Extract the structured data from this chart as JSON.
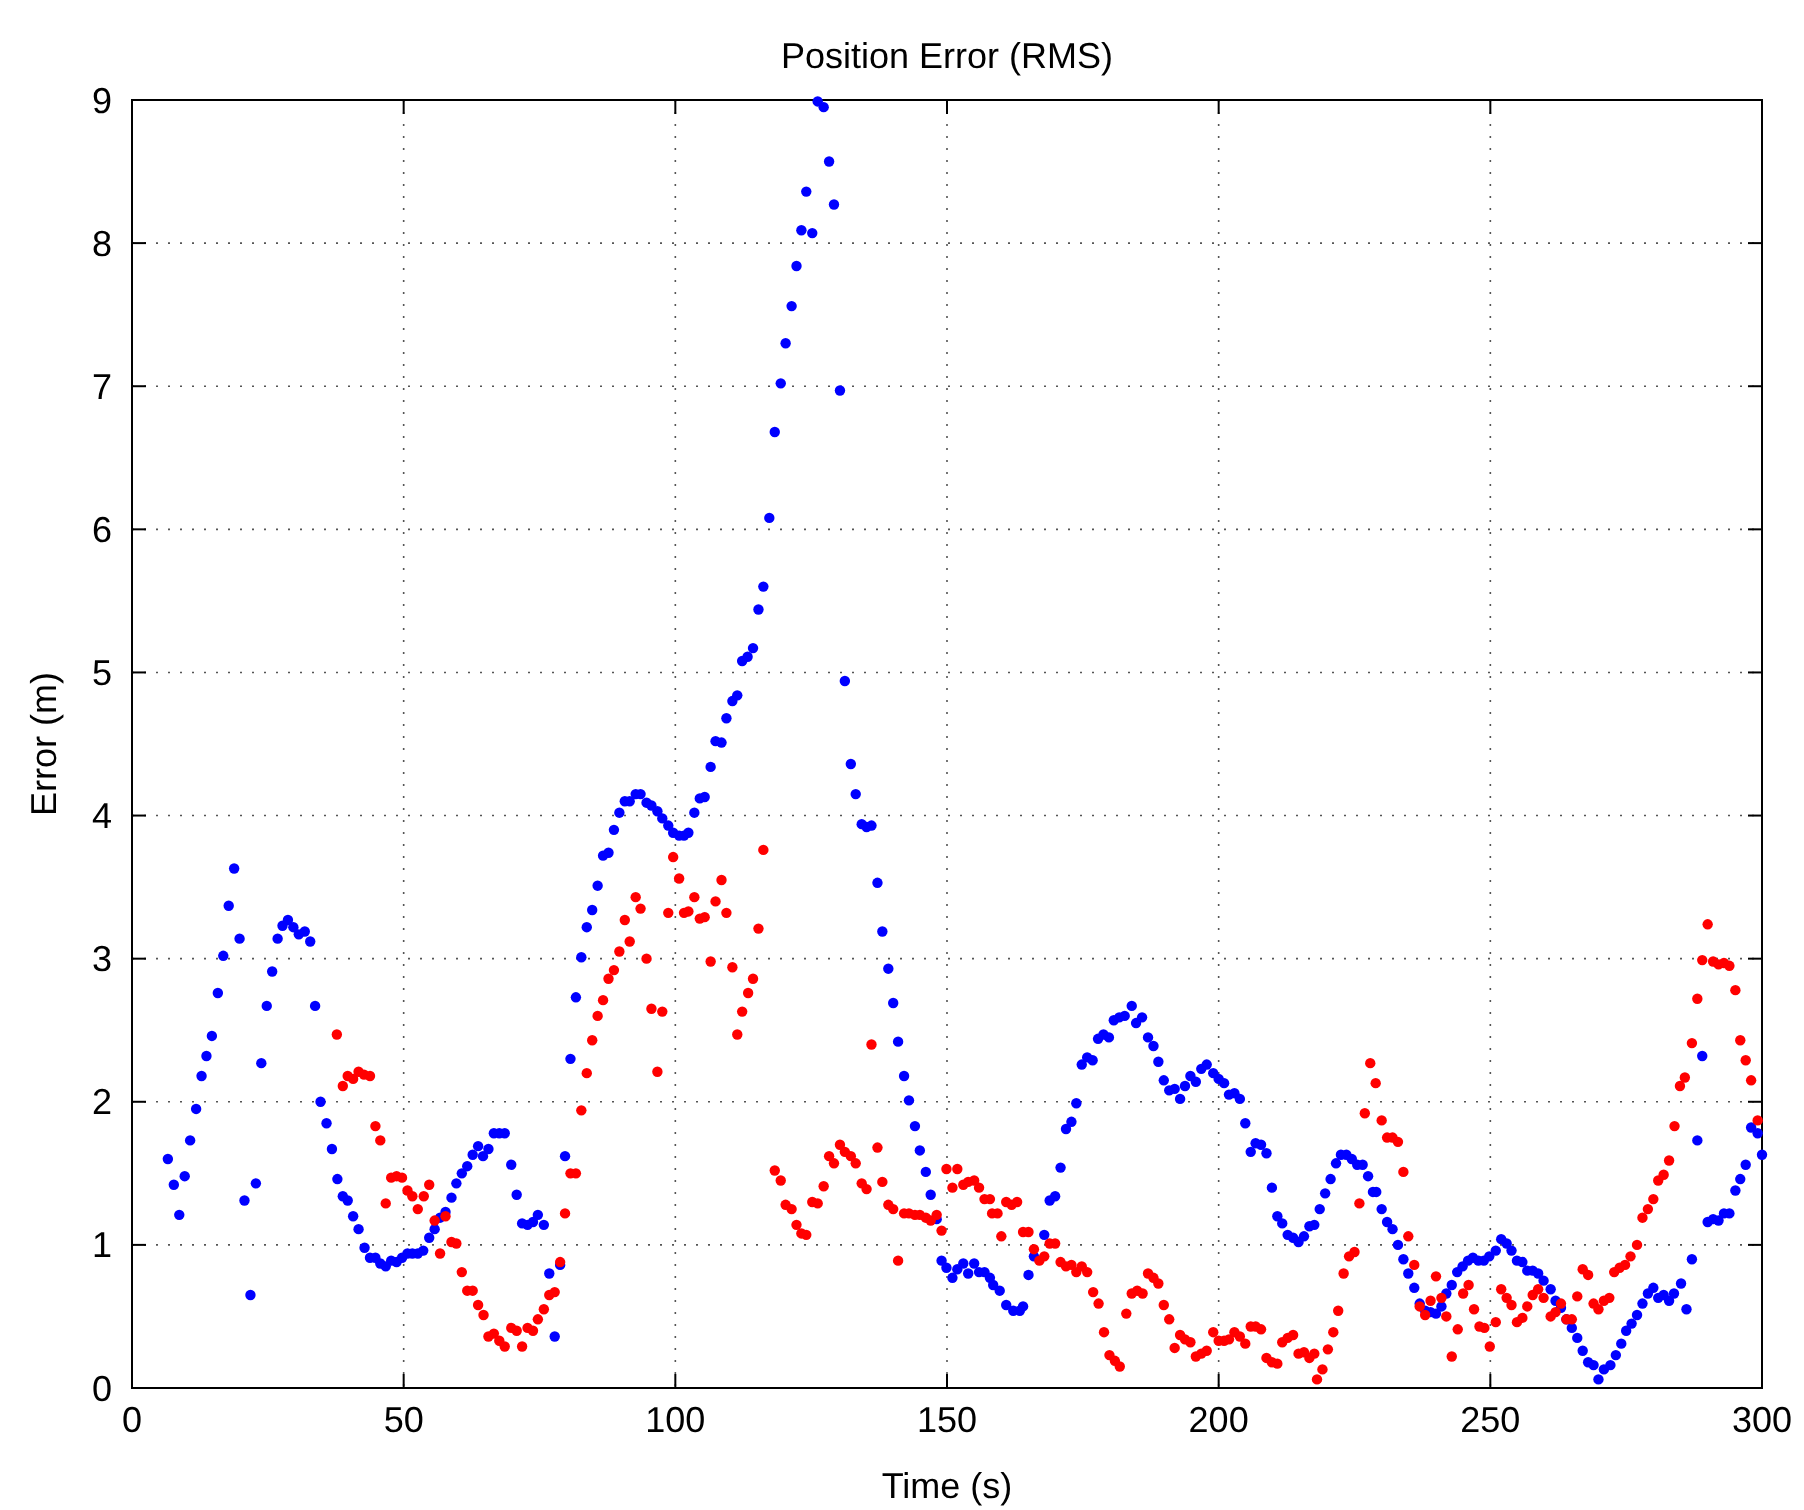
{
  "chart_data": {
    "type": "scatter",
    "title": "Position Error (RMS)",
    "xlabel": "Time (s)",
    "ylabel": "Error (m)",
    "xlim": [
      0,
      300
    ],
    "ylim": [
      0,
      9
    ],
    "xticks": [
      0,
      50,
      100,
      150,
      200,
      250,
      300
    ],
    "yticks": [
      0,
      1,
      2,
      3,
      4,
      5,
      6,
      7,
      8,
      9
    ],
    "grid": true,
    "marker": "circle",
    "series": [
      {
        "color": "#0000ff",
        "x": [
          6.6,
          7.7,
          8.7,
          9.7,
          10.7,
          11.8,
          12.8,
          13.7,
          14.7,
          15.8,
          16.8,
          17.8,
          18.8,
          19.8,
          20.7,
          21.8,
          22.8,
          23.8,
          24.8,
          25.8,
          26.8,
          27.7,
          28.7,
          29.7,
          30.7,
          31.8,
          32.8,
          33.7,
          34.7,
          35.8,
          36.8,
          37.8,
          38.8,
          39.7,
          40.7,
          41.7,
          42.8,
          43.8,
          44.8,
          45.7,
          46.7,
          47.7,
          48.7,
          49.7,
          50.7,
          51.6,
          52.6,
          53.6,
          54.7,
          55.7,
          56.7,
          57.7,
          58.8,
          59.7,
          60.7,
          61.7,
          62.7,
          63.7,
          64.6,
          65.6,
          66.6,
          67.6,
          68.6,
          69.8,
          70.8,
          71.8,
          72.8,
          73.8,
          74.7,
          75.8,
          76.8,
          77.8,
          78.8,
          79.7,
          80.7,
          81.7,
          82.7,
          83.7,
          84.7,
          85.7,
          86.7,
          87.7,
          88.7,
          89.7,
          90.7,
          91.6,
          92.7,
          93.6,
          94.7,
          95.6,
          96.7,
          97.6,
          98.7,
          99.6,
          100.7,
          101.6,
          102.4,
          103.5,
          104.5,
          105.4,
          106.5,
          107.4,
          108.5,
          109.4,
          110.5,
          111.4,
          112.3,
          113.3,
          114.3,
          115.3,
          116.2,
          117.3,
          118.3,
          119.4,
          120.3,
          121.4,
          122.3,
          123.2,
          124.1,
          125.2,
          126.2,
          127.3,
          128.3,
          129.2,
          130.3,
          131.2,
          132.3,
          133.2,
          134.3,
          135.2,
          136.1,
          137.2,
          138.1,
          139.2,
          140.1,
          141.0,
          142.1,
          143.0,
          144.1,
          145.0,
          146.1,
          147.0,
          148.1,
          149.0,
          149.9,
          151.0,
          151.9,
          153.0,
          153.9,
          155.0,
          155.9,
          156.9,
          157.9,
          158.5,
          159.7,
          160.9,
          162.2,
          163.4,
          164.0,
          165.0,
          166.0,
          167.9,
          168.9,
          169.9,
          170.9,
          171.9,
          172.9,
          173.8,
          174.8,
          175.8,
          176.8,
          177.8,
          178.8,
          179.8,
          180.7,
          181.7,
          182.7,
          184.0,
          184.8,
          185.9,
          187.0,
          188.0,
          188.9,
          189.9,
          190.9,
          191.9,
          192.9,
          193.8,
          194.8,
          195.8,
          196.8,
          197.8,
          199.0,
          200.0,
          201.0,
          201.9,
          202.9,
          203.9,
          204.9,
          205.9,
          206.8,
          207.8,
          208.8,
          209.8,
          210.8,
          211.7,
          212.7,
          213.7,
          214.7,
          215.7,
          216.7,
          217.6,
          218.6,
          219.6,
          220.6,
          221.6,
          222.5,
          223.5,
          224.5,
          225.5,
          226.5,
          227.5,
          228.4,
          229.0,
          230.0,
          231.0,
          232.0,
          233.0,
          234.0,
          234.9,
          236.0,
          237.0,
          238.0,
          239.0,
          240.0,
          241.0,
          241.9,
          242.9,
          243.9,
          244.9,
          245.9,
          246.8,
          247.8,
          248.8,
          249.8,
          251.0,
          252.0,
          253.0,
          253.9,
          254.9,
          255.9,
          256.8,
          257.8,
          258.8,
          259.8,
          261.1,
          262.0,
          263.0,
          264.0,
          265.0,
          266.0,
          267.0,
          268.0,
          269.0,
          269.9,
          270.9,
          272.1,
          273.1,
          274.1,
          275.0,
          276.0,
          277.0,
          278.0,
          279.0,
          280.0,
          280.9,
          281.9,
          282.9,
          283.8,
          285.1,
          286.1,
          287.1,
          288.1,
          289.0,
          290.0,
          291.0,
          292.0,
          293.0,
          294.0,
          295.1,
          296.0,
          297.0,
          298.0,
          299.2,
          300
        ],
        "values": [
          1.6,
          1.42,
          1.21,
          1.48,
          1.73,
          1.95,
          2.18,
          2.32,
          2.46,
          2.76,
          3.02,
          3.37,
          3.63,
          3.14,
          1.31,
          0.65,
          1.43,
          2.27,
          2.67,
          2.91,
          3.14,
          3.23,
          3.27,
          3.22,
          3.17,
          3.19,
          3.12,
          2.67,
          2.0,
          1.85,
          1.67,
          1.46,
          1.34,
          1.31,
          1.2,
          1.11,
          0.98,
          0.91,
          0.91,
          0.87,
          0.85,
          0.89,
          0.88,
          0.91,
          0.94,
          0.94,
          0.94,
          0.96,
          1.05,
          1.11,
          1.19,
          1.23,
          1.33,
          1.43,
          1.5,
          1.55,
          1.63,
          1.69,
          1.62,
          1.67,
          1.78,
          1.78,
          1.78,
          1.56,
          1.35,
          1.15,
          1.14,
          1.16,
          1.21,
          1.14,
          0.8,
          0.36,
          0.86,
          1.62,
          2.3,
          2.73,
          3.01,
          3.22,
          3.34,
          3.51,
          3.72,
          3.74,
          3.9,
          4.02,
          4.1,
          4.1,
          4.15,
          4.15,
          4.09,
          4.07,
          4.03,
          3.98,
          3.93,
          3.88,
          3.86,
          3.86,
          3.88,
          4.02,
          4.12,
          4.13,
          4.34,
          4.52,
          4.51,
          4.68,
          4.8,
          4.84,
          5.08,
          5.11,
          5.17,
          5.44,
          5.6,
          6.08,
          6.68,
          7.02,
          7.3,
          7.56,
          7.84,
          8.09,
          8.36,
          8.07,
          8.99,
          8.95,
          8.57,
          8.27,
          6.97,
          4.94,
          4.36,
          4.15,
          3.94,
          3.92,
          3.93,
          3.53,
          3.19,
          2.93,
          2.69,
          2.42,
          2.18,
          2.01,
          1.83,
          1.66,
          1.51,
          1.35,
          1.18,
          0.89,
          0.84,
          0.77,
          0.83,
          0.87,
          0.8,
          0.87,
          0.81,
          0.81,
          0.77,
          0.72,
          0.68,
          0.58,
          0.54,
          0.54,
          0.57,
          0.79,
          0.92,
          1.07,
          1.31,
          1.34,
          1.54,
          1.81,
          1.86,
          1.99,
          2.26,
          2.31,
          2.29,
          2.44,
          2.47,
          2.45,
          2.57,
          2.59,
          2.6,
          2.67,
          2.55,
          2.59,
          2.45,
          2.39,
          2.28,
          2.15,
          2.08,
          2.09,
          2.02,
          2.11,
          2.18,
          2.14,
          2.23,
          2.26,
          2.2,
          2.16,
          2.13,
          2.05,
          2.06,
          2.02,
          1.85,
          1.65,
          1.71,
          1.7,
          1.64,
          1.4,
          1.2,
          1.15,
          1.07,
          1.05,
          1.02,
          1.06,
          1.13,
          1.14,
          1.25,
          1.36,
          1.46,
          1.57,
          1.63,
          1.63,
          1.6,
          1.56,
          1.56,
          1.48,
          1.37,
          1.37,
          1.25,
          1.16,
          1.11,
          1.0,
          0.9,
          0.8,
          0.7,
          0.59,
          0.54,
          0.53,
          0.52,
          0.57,
          0.66,
          0.72,
          0.81,
          0.85,
          0.89,
          0.91,
          0.89,
          0.89,
          0.92,
          0.96,
          1.04,
          1.01,
          0.96,
          0.89,
          0.88,
          0.82,
          0.82,
          0.8,
          0.75,
          0.69,
          0.61,
          0.56,
          0.48,
          0.42,
          0.35,
          0.26,
          0.18,
          0.16,
          0.06,
          0.13,
          0.16,
          0.23,
          0.31,
          0.4,
          0.45,
          0.51,
          0.59,
          0.66,
          0.7,
          0.63,
          0.65,
          0.61,
          0.66,
          0.73,
          0.55,
          0.9,
          1.73,
          2.32,
          1.16,
          1.18,
          1.17,
          1.22,
          1.22,
          1.38,
          1.46,
          1.56,
          1.82,
          1.78,
          1.63
        ]
      },
      {
        "color": "#ff0000",
        "x": [
          37.7,
          38.8,
          39.7,
          40.7,
          41.7,
          42.7,
          43.8,
          44.8,
          45.7,
          46.7,
          47.7,
          48.7,
          49.7,
          50.7,
          51.6,
          52.6,
          53.7,
          54.7,
          55.7,
          56.7,
          57.7,
          58.8,
          59.7,
          60.7,
          61.7,
          62.7,
          63.7,
          64.7,
          65.6,
          66.6,
          67.6,
          68.6,
          69.8,
          70.8,
          71.8,
          72.8,
          73.8,
          74.7,
          75.8,
          76.8,
          77.8,
          78.8,
          79.7,
          80.7,
          81.7,
          82.7,
          83.7,
          84.7,
          85.7,
          86.7,
          87.7,
          88.7,
          89.7,
          90.7,
          91.6,
          92.7,
          93.6,
          94.7,
          95.6,
          96.7,
          97.6,
          98.7,
          99.6,
          100.7,
          101.6,
          102.4,
          103.5,
          104.5,
          105.4,
          106.5,
          107.4,
          108.5,
          109.4,
          110.5,
          111.4,
          112.3,
          113.4,
          114.3,
          115.3,
          116.2,
          118.3,
          119.4,
          120.3,
          121.4,
          122.3,
          123.2,
          124.1,
          125.2,
          126.2,
          127.3,
          128.3,
          129.2,
          130.3,
          131.2,
          132.3,
          133.2,
          134.3,
          135.2,
          136.1,
          137.2,
          138.1,
          139.2,
          140.1,
          141.0,
          142.1,
          143.0,
          144.1,
          145.0,
          146.1,
          147.0,
          148.1,
          149.0,
          149.9,
          151.0,
          151.9,
          153.0,
          153.9,
          155.0,
          155.9,
          156.9,
          157.9,
          158.3,
          159.3,
          160.0,
          160.9,
          161.9,
          162.9,
          164.0,
          165.0,
          166.0,
          167.0,
          167.9,
          168.9,
          169.9,
          170.9,
          171.9,
          172.9,
          173.8,
          174.8,
          175.8,
          176.9,
          177.9,
          178.9,
          179.9,
          180.9,
          181.8,
          183.0,
          184.0,
          185.0,
          186.0,
          187.0,
          188.0,
          188.9,
          189.9,
          190.9,
          191.9,
          192.9,
          193.8,
          194.8,
          195.8,
          196.8,
          197.8,
          199.0,
          200.0,
          201.0,
          201.9,
          202.9,
          203.9,
          204.9,
          205.9,
          206.8,
          207.8,
          208.8,
          209.8,
          210.8,
          211.7,
          212.7,
          213.7,
          214.7,
          215.7,
          216.7,
          217.6,
          218.1,
          219.1,
          220.1,
          221.1,
          222.0,
          223.0,
          224.0,
          225.0,
          225.9,
          226.9,
          227.9,
          228.9,
          230.0,
          231.0,
          232.0,
          233.0,
          234.0,
          234.9,
          236.0,
          237.0,
          238.0,
          239.0,
          240.0,
          241.0,
          241.9,
          242.9,
          244.0,
          245.0,
          246.0,
          247.0,
          248.0,
          248.9,
          249.9,
          251.0,
          252.0,
          253.0,
          253.9,
          254.9,
          255.9,
          256.8,
          257.8,
          258.8,
          259.8,
          261.1,
          262.0,
          263.0,
          264.0,
          265.0,
          266.0,
          267.0,
          268.0,
          269.0,
          269.9,
          270.9,
          271.9,
          272.8,
          273.8,
          274.8,
          275.8,
          277.0,
          278.0,
          279.0,
          280.0,
          280.9,
          281.9,
          282.9,
          283.9,
          284.9,
          285.8,
          287.1,
          288.1,
          289.0,
          290.0,
          291.0,
          292.0,
          293.0,
          294.0,
          295.1,
          296.0,
          297.0,
          298.0,
          299.2
        ],
        "values": [
          2.47,
          2.11,
          2.18,
          2.16,
          2.21,
          2.19,
          2.18,
          1.83,
          1.73,
          1.29,
          1.47,
          1.48,
          1.47,
          1.38,
          1.34,
          1.25,
          1.34,
          1.42,
          1.17,
          0.94,
          1.2,
          1.02,
          1.01,
          0.81,
          0.68,
          0.68,
          0.58,
          0.51,
          0.36,
          0.38,
          0.33,
          0.29,
          0.42,
          0.4,
          0.29,
          0.42,
          0.4,
          0.48,
          0.55,
          0.65,
          0.67,
          0.88,
          1.22,
          1.5,
          1.5,
          1.94,
          2.2,
          2.43,
          2.6,
          2.71,
          2.86,
          2.92,
          3.05,
          3.27,
          3.12,
          3.43,
          3.35,
          3.0,
          2.65,
          2.21,
          2.63,
          3.32,
          3.71,
          3.56,
          3.32,
          3.33,
          3.43,
          3.28,
          3.29,
          2.98,
          3.4,
          3.55,
          3.32,
          2.94,
          2.47,
          2.63,
          2.76,
          2.86,
          3.21,
          3.76,
          1.52,
          1.45,
          1.28,
          1.25,
          1.14,
          1.08,
          1.07,
          1.3,
          1.29,
          1.41,
          1.62,
          1.57,
          1.7,
          1.65,
          1.62,
          1.57,
          1.43,
          1.39,
          2.4,
          1.68,
          1.44,
          1.28,
          1.25,
          0.89,
          1.22,
          1.22,
          1.21,
          1.21,
          1.19,
          1.17,
          1.21,
          1.1,
          1.53,
          1.4,
          1.53,
          1.42,
          1.44,
          1.45,
          1.4,
          1.32,
          1.32,
          1.22,
          1.22,
          1.06,
          1.3,
          1.28,
          1.3,
          1.09,
          1.09,
          0.97,
          0.89,
          0.92,
          1.01,
          1.01,
          0.88,
          0.85,
          0.86,
          0.81,
          0.85,
          0.81,
          0.67,
          0.59,
          0.39,
          0.23,
          0.19,
          0.15,
          0.52,
          0.66,
          0.68,
          0.66,
          0.8,
          0.77,
          0.73,
          0.58,
          0.48,
          0.28,
          0.37,
          0.34,
          0.32,
          0.22,
          0.24,
          0.26,
          0.39,
          0.33,
          0.33,
          0.34,
          0.39,
          0.36,
          0.31,
          0.43,
          0.43,
          0.41,
          0.21,
          0.18,
          0.17,
          0.32,
          0.35,
          0.37,
          0.24,
          0.25,
          0.21,
          0.24,
          0.06,
          0.13,
          0.27,
          0.39,
          0.54,
          0.8,
          0.92,
          0.95,
          1.29,
          1.92,
          2.27,
          2.13,
          1.87,
          1.75,
          1.75,
          1.72,
          1.51,
          1.06,
          0.86,
          0.57,
          0.51,
          0.61,
          0.78,
          0.63,
          0.5,
          0.22,
          0.41,
          0.66,
          0.72,
          0.55,
          0.43,
          0.42,
          0.29,
          0.46,
          0.69,
          0.63,
          0.58,
          0.46,
          0.49,
          0.57,
          0.65,
          0.69,
          0.63,
          0.5,
          0.53,
          0.59,
          0.48,
          0.48,
          0.64,
          0.83,
          0.79,
          0.59,
          0.55,
          0.61,
          0.63,
          0.81,
          0.84,
          0.86,
          0.92,
          1.0,
          1.19,
          1.25,
          1.32,
          1.45,
          1.49,
          1.59,
          1.83,
          2.11,
          2.17,
          2.41,
          2.72,
          2.99,
          3.24,
          2.98,
          2.96,
          2.97,
          2.95,
          2.78,
          2.43,
          2.29,
          2.15,
          1.87
        ]
      }
    ]
  }
}
